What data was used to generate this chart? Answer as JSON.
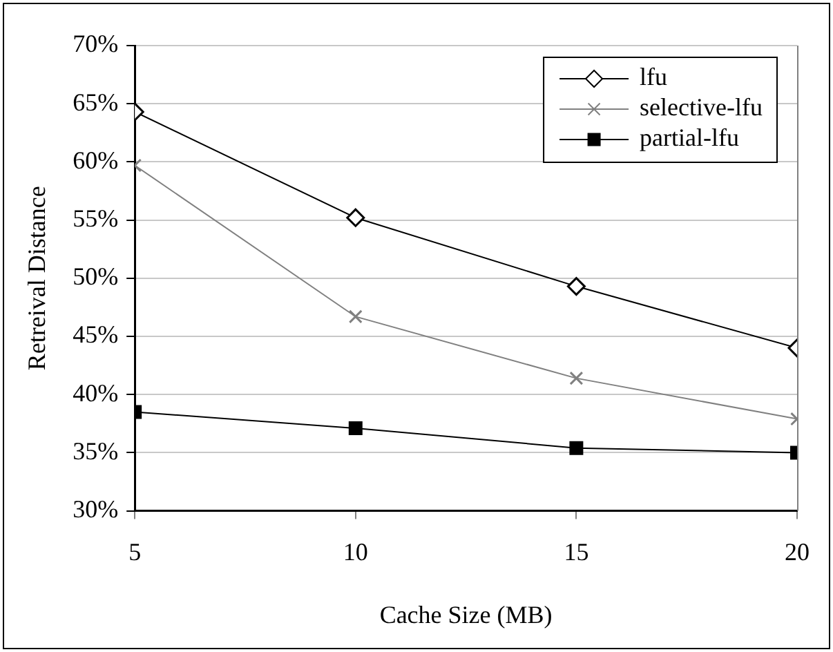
{
  "chart_data": {
    "type": "line",
    "xlabel": "Cache Size (MB)",
    "ylabel": "Retreival Distance",
    "x": [
      5,
      10,
      15,
      20
    ],
    "series": [
      {
        "name": "lfu",
        "color": "#000000",
        "marker": "diamond",
        "values": [
          64.3,
          55.2,
          49.3,
          44.0
        ]
      },
      {
        "name": "selective-lfu",
        "color": "#808080",
        "marker": "cross",
        "values": [
          59.7,
          46.7,
          41.4,
          37.9
        ]
      },
      {
        "name": "partial-lfu",
        "color": "#000000",
        "marker": "square",
        "values": [
          38.5,
          37.1,
          35.4,
          35.0
        ]
      }
    ],
    "xlim": [
      5,
      20
    ],
    "xticks": [
      5,
      10,
      15,
      20
    ],
    "ylim": [
      30,
      70
    ],
    "yticks": [
      {
        "value": 30,
        "label": "30%"
      },
      {
        "value": 35,
        "label": "35%"
      },
      {
        "value": 40,
        "label": "40%"
      },
      {
        "value": 45,
        "label": "45%"
      },
      {
        "value": 50,
        "label": "50%"
      },
      {
        "value": 55,
        "label": "55%"
      },
      {
        "value": 60,
        "label": "60%"
      },
      {
        "value": 65,
        "label": "65%"
      },
      {
        "value": 70,
        "label": "70%"
      }
    ],
    "grid": "y",
    "legend": "top right",
    "line_style": "solid"
  }
}
